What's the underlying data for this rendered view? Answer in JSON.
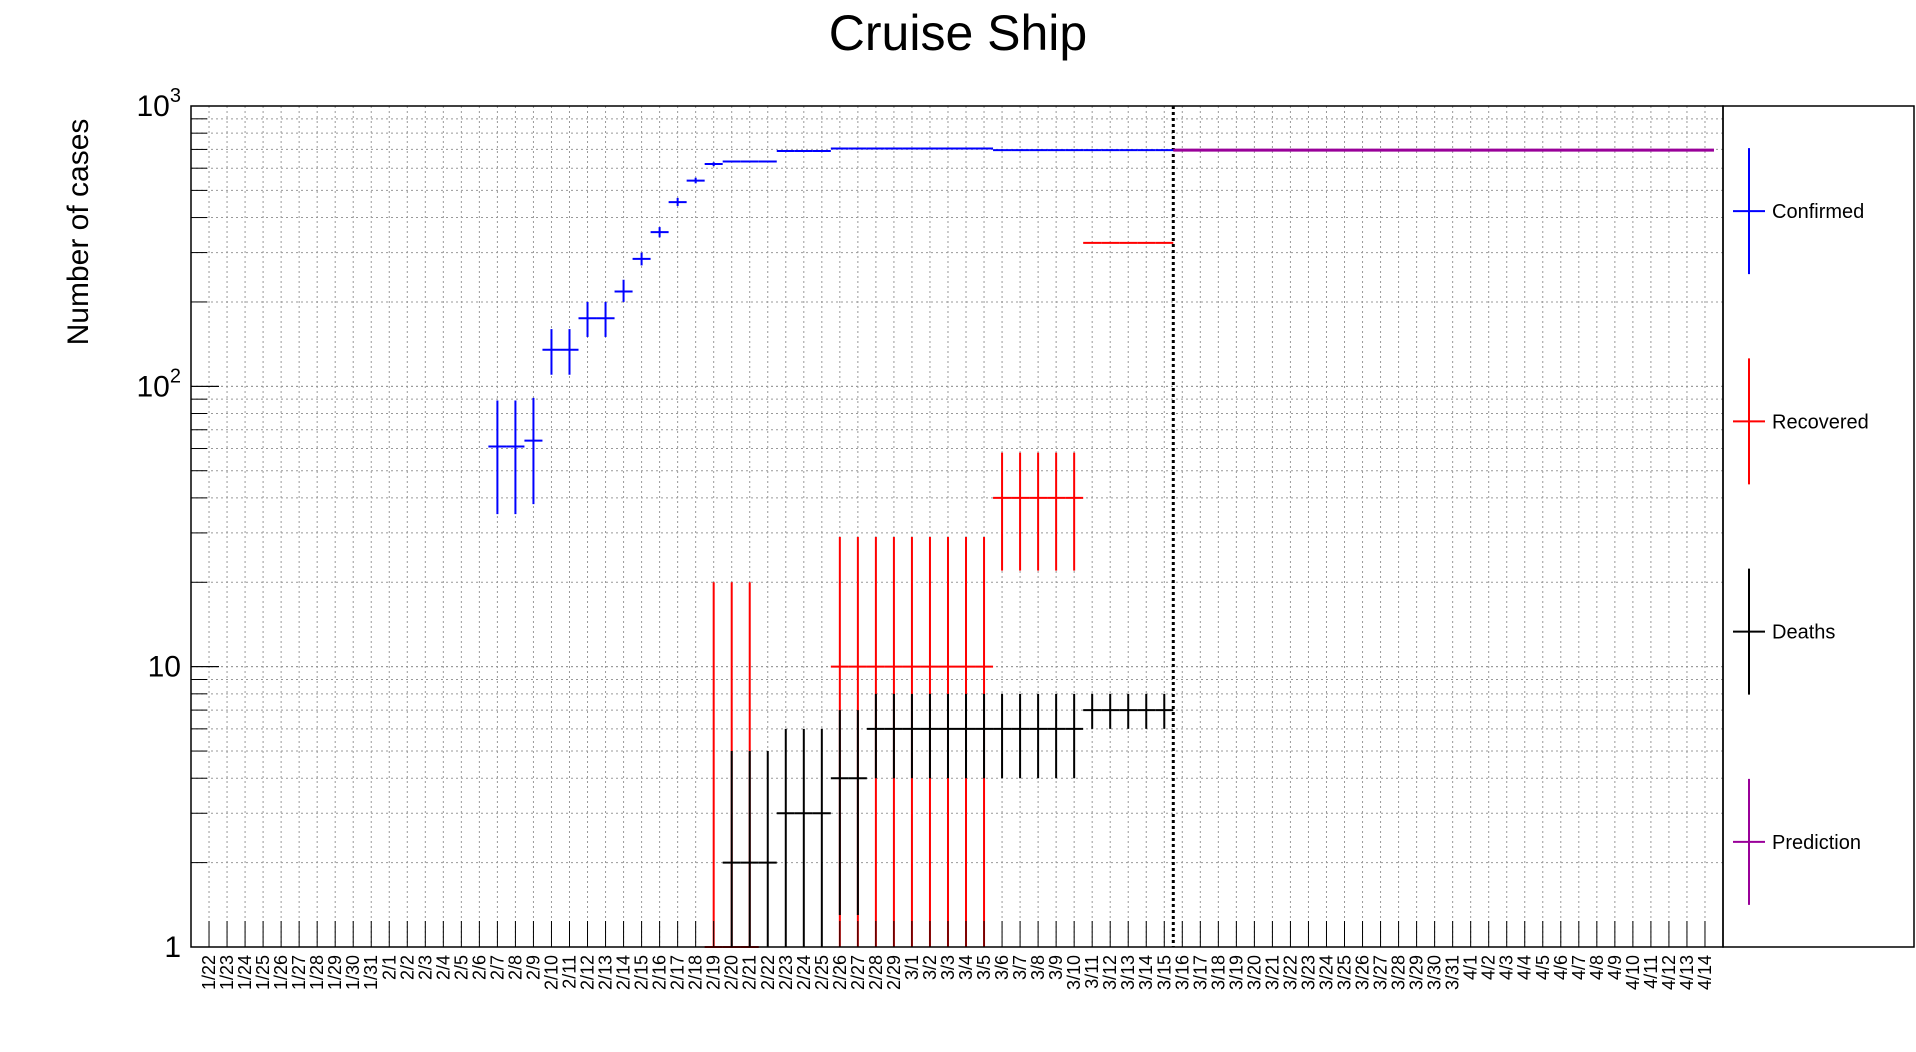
{
  "chart_data": {
    "type": "scatter",
    "title": "Cruise Ship",
    "xlabel": "",
    "ylabel": "Number of cases",
    "y_scale": "log",
    "ylim": [
      1,
      1000
    ],
    "y_ticks": [
      {
        "value": 1,
        "label": "1"
      },
      {
        "value": 10,
        "label": "10"
      },
      {
        "value": 100,
        "label": "10",
        "exp": "2"
      },
      {
        "value": 1000,
        "label": "10",
        "exp": "3"
      }
    ],
    "grid": true,
    "legend_position": "right",
    "x_categories": [
      "1/22",
      "1/23",
      "1/24",
      "1/25",
      "1/26",
      "1/27",
      "1/28",
      "1/29",
      "1/30",
      "1/31",
      "2/1",
      "2/2",
      "2/3",
      "2/4",
      "2/5",
      "2/6",
      "2/7",
      "2/8",
      "2/9",
      "2/10",
      "2/11",
      "2/12",
      "2/13",
      "2/14",
      "2/15",
      "2/16",
      "2/17",
      "2/18",
      "2/19",
      "2/20",
      "2/21",
      "2/22",
      "2/23",
      "2/24",
      "2/25",
      "2/26",
      "2/27",
      "2/28",
      "2/29",
      "3/1",
      "3/2",
      "3/3",
      "3/4",
      "3/5",
      "3/6",
      "3/7",
      "3/8",
      "3/9",
      "3/10",
      "3/11",
      "3/12",
      "3/13",
      "3/14",
      "3/15",
      "3/16",
      "3/17",
      "3/18",
      "3/19",
      "3/20",
      "3/21",
      "3/22",
      "3/23",
      "3/24",
      "3/25",
      "3/26",
      "3/27",
      "3/28",
      "3/29",
      "3/30",
      "3/31",
      "4/1",
      "4/2",
      "4/3",
      "4/4",
      "4/5",
      "4/6",
      "4/7",
      "4/8",
      "4/9",
      "4/10",
      "4/11",
      "4/12",
      "4/13",
      "4/14"
    ],
    "vertical_line_at": "3/15",
    "series": [
      {
        "name": "Confirmed",
        "color": "#0000ff",
        "points": [
          {
            "x": "2/7",
            "y": 61,
            "ylo": 35,
            "yhi": 89
          },
          {
            "x": "2/8",
            "y": 61,
            "ylo": 35,
            "yhi": 89
          },
          {
            "x": "2/9",
            "y": 64,
            "ylo": 38,
            "yhi": 91
          },
          {
            "x": "2/10",
            "y": 135,
            "ylo": 110,
            "yhi": 160
          },
          {
            "x": "2/11",
            "y": 135,
            "ylo": 110,
            "yhi": 160
          },
          {
            "x": "2/12",
            "y": 175,
            "ylo": 150,
            "yhi": 200
          },
          {
            "x": "2/13",
            "y": 175,
            "ylo": 150,
            "yhi": 200
          },
          {
            "x": "2/14",
            "y": 218,
            "ylo": 200,
            "yhi": 240
          },
          {
            "x": "2/15",
            "y": 285,
            "ylo": 270,
            "yhi": 300
          },
          {
            "x": "2/16",
            "y": 355,
            "ylo": 340,
            "yhi": 370
          },
          {
            "x": "2/17",
            "y": 454,
            "ylo": 440,
            "yhi": 470
          },
          {
            "x": "2/18",
            "y": 542,
            "ylo": 530,
            "yhi": 555
          },
          {
            "x": "2/19",
            "y": 621,
            "ylo": 610,
            "yhi": 630
          },
          {
            "x": "2/20",
            "y": 634
          },
          {
            "x": "2/21",
            "y": 634
          },
          {
            "x": "2/22",
            "y": 634
          },
          {
            "x": "2/23",
            "y": 691
          },
          {
            "x": "2/24",
            "y": 691
          },
          {
            "x": "2/25",
            "y": 691
          },
          {
            "x": "2/26",
            "y": 705
          },
          {
            "x": "2/27",
            "y": 705
          },
          {
            "x": "2/28",
            "y": 705
          },
          {
            "x": "2/29",
            "y": 705
          },
          {
            "x": "3/1",
            "y": 705
          },
          {
            "x": "3/2",
            "y": 705
          },
          {
            "x": "3/3",
            "y": 705
          },
          {
            "x": "3/4",
            "y": 705
          },
          {
            "x": "3/5",
            "y": 705
          },
          {
            "x": "3/6",
            "y": 696
          },
          {
            "x": "3/7",
            "y": 696
          },
          {
            "x": "3/8",
            "y": 696
          },
          {
            "x": "3/9",
            "y": 696
          },
          {
            "x": "3/10",
            "y": 696
          },
          {
            "x": "3/11",
            "y": 696
          },
          {
            "x": "3/12",
            "y": 696
          },
          {
            "x": "3/13",
            "y": 696
          },
          {
            "x": "3/14",
            "y": 696
          },
          {
            "x": "3/15",
            "y": 696
          }
        ]
      },
      {
        "name": "Recovered",
        "color": "#ff0000",
        "points": [
          {
            "x": "2/19",
            "y": 1,
            "ylo": 1,
            "yhi": 20
          },
          {
            "x": "2/20",
            "y": 1,
            "ylo": 1,
            "yhi": 20
          },
          {
            "x": "2/21",
            "y": 1,
            "ylo": 1,
            "yhi": 20
          },
          {
            "x": "2/26",
            "y": 10,
            "ylo": 1,
            "yhi": 29
          },
          {
            "x": "2/27",
            "y": 10,
            "ylo": 1,
            "yhi": 29
          },
          {
            "x": "2/28",
            "y": 10,
            "ylo": 1,
            "yhi": 29
          },
          {
            "x": "2/29",
            "y": 10,
            "ylo": 1,
            "yhi": 29
          },
          {
            "x": "3/1",
            "y": 10,
            "ylo": 1,
            "yhi": 29
          },
          {
            "x": "3/2",
            "y": 10,
            "ylo": 1,
            "yhi": 29
          },
          {
            "x": "3/3",
            "y": 10,
            "ylo": 1,
            "yhi": 29
          },
          {
            "x": "3/4",
            "y": 10,
            "ylo": 1,
            "yhi": 29
          },
          {
            "x": "3/5",
            "y": 10,
            "ylo": 1,
            "yhi": 29
          },
          {
            "x": "3/6",
            "y": 40,
            "ylo": 22,
            "yhi": 58
          },
          {
            "x": "3/7",
            "y": 40,
            "ylo": 22,
            "yhi": 58
          },
          {
            "x": "3/8",
            "y": 40,
            "ylo": 22,
            "yhi": 58
          },
          {
            "x": "3/9",
            "y": 40,
            "ylo": 22,
            "yhi": 58
          },
          {
            "x": "3/10",
            "y": 40,
            "ylo": 22,
            "yhi": 58
          },
          {
            "x": "3/11",
            "y": 325
          },
          {
            "x": "3/12",
            "y": 325
          },
          {
            "x": "3/13",
            "y": 325
          },
          {
            "x": "3/14",
            "y": 325
          },
          {
            "x": "3/15",
            "y": 325
          }
        ]
      },
      {
        "name": "Deaths",
        "color": "#000000",
        "points": [
          {
            "x": "2/20",
            "y": 2,
            "ylo": 1,
            "yhi": 5
          },
          {
            "x": "2/21",
            "y": 2,
            "ylo": 1,
            "yhi": 5
          },
          {
            "x": "2/22",
            "y": 2,
            "ylo": 1,
            "yhi": 5
          },
          {
            "x": "2/23",
            "y": 3,
            "ylo": 1,
            "yhi": 6
          },
          {
            "x": "2/24",
            "y": 3,
            "ylo": 1,
            "yhi": 6
          },
          {
            "x": "2/25",
            "y": 3,
            "ylo": 1,
            "yhi": 6
          },
          {
            "x": "2/26",
            "y": 4,
            "ylo": 1.3,
            "yhi": 7
          },
          {
            "x": "2/27",
            "y": 4,
            "ylo": 1.3,
            "yhi": 7
          },
          {
            "x": "2/28",
            "y": 6,
            "ylo": 4,
            "yhi": 8
          },
          {
            "x": "2/29",
            "y": 6,
            "ylo": 4,
            "yhi": 8
          },
          {
            "x": "3/1",
            "y": 6,
            "ylo": 4,
            "yhi": 8
          },
          {
            "x": "3/2",
            "y": 6,
            "ylo": 4,
            "yhi": 8
          },
          {
            "x": "3/3",
            "y": 6,
            "ylo": 4,
            "yhi": 8
          },
          {
            "x": "3/4",
            "y": 6,
            "ylo": 4,
            "yhi": 8
          },
          {
            "x": "3/5",
            "y": 6,
            "ylo": 4,
            "yhi": 8
          },
          {
            "x": "3/6",
            "y": 6,
            "ylo": 4,
            "yhi": 8
          },
          {
            "x": "3/7",
            "y": 6,
            "ylo": 4,
            "yhi": 8
          },
          {
            "x": "3/8",
            "y": 6,
            "ylo": 4,
            "yhi": 8
          },
          {
            "x": "3/9",
            "y": 6,
            "ylo": 4,
            "yhi": 8
          },
          {
            "x": "3/10",
            "y": 6,
            "ylo": 4,
            "yhi": 8
          },
          {
            "x": "3/11",
            "y": 7,
            "ylo": 6,
            "yhi": 8
          },
          {
            "x": "3/12",
            "y": 7,
            "ylo": 6,
            "yhi": 8
          },
          {
            "x": "3/13",
            "y": 7,
            "ylo": 6,
            "yhi": 8
          },
          {
            "x": "3/14",
            "y": 7,
            "ylo": 6,
            "yhi": 8
          },
          {
            "x": "3/15",
            "y": 7,
            "ylo": 6,
            "yhi": 8
          }
        ]
      },
      {
        "name": "Prediction",
        "color": "#990099",
        "x_from": "3/15",
        "x_to": "4/14",
        "y": 696
      }
    ]
  }
}
